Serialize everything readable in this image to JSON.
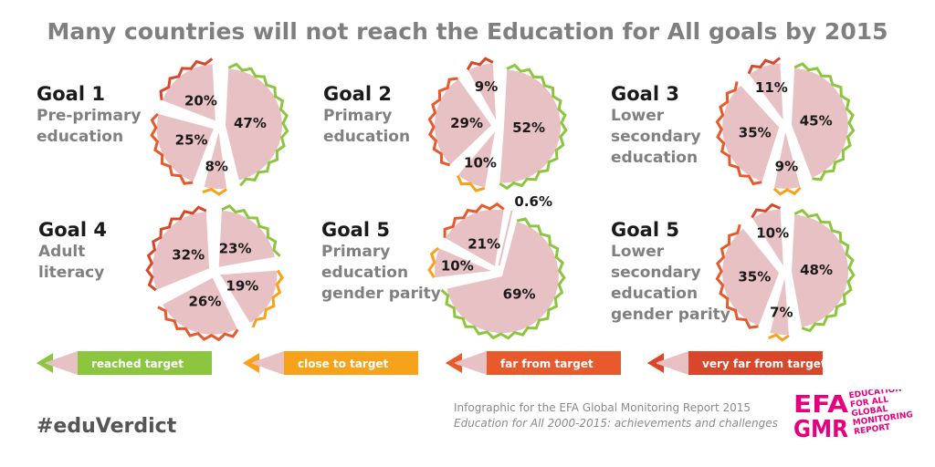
{
  "title": "Many countries will not reach the Education for All goals by 2015",
  "colors": {
    "reached": "#8cc63f",
    "close": "#f7a21b",
    "far": "#e8592b",
    "very_far": "#d9472b",
    "pie_fill": "#e8c1c5",
    "logo": "#e6007e"
  },
  "chart_data": [
    {
      "type": "pie",
      "goal": "Goal 1",
      "subtitle": "Pre-primary\neducation",
      "categories": [
        "reached target",
        "close to target",
        "far from target",
        "very far from target"
      ],
      "values": [
        47,
        8,
        25,
        20
      ],
      "labels": [
        "47%",
        "8%",
        "25%",
        "20%"
      ]
    },
    {
      "type": "pie",
      "goal": "Goal 2",
      "subtitle": "Primary\neducation",
      "categories": [
        "reached target",
        "close to target",
        "far from target",
        "very far from target"
      ],
      "values": [
        52,
        10,
        29,
        9
      ],
      "labels": [
        "52%",
        "10%",
        "29%",
        "9%"
      ]
    },
    {
      "type": "pie",
      "goal": "Goal 3",
      "subtitle": "Lower\nsecondary\neducation",
      "categories": [
        "reached target",
        "close to target",
        "far from target",
        "very far from target"
      ],
      "values": [
        45,
        9,
        35,
        11
      ],
      "labels": [
        "45%",
        "9%",
        "35%",
        "11%"
      ]
    },
    {
      "type": "pie",
      "goal": "Goal 4",
      "subtitle": "Adult\nliteracy",
      "categories": [
        "reached target",
        "close to target",
        "far from target",
        "very far from target"
      ],
      "values": [
        23,
        19,
        26,
        32
      ],
      "labels": [
        "23%",
        "19%",
        "26%",
        "32%"
      ]
    },
    {
      "type": "pie",
      "goal": "Goal 5",
      "subtitle": "Primary\neducation\ngender parity",
      "categories": [
        "reached target",
        "close to target",
        "far from target",
        "very far from target"
      ],
      "values": [
        69,
        10,
        21,
        0.6
      ],
      "labels": [
        "69%",
        "10%",
        "21%",
        "0.6%"
      ]
    },
    {
      "type": "pie",
      "goal": "Goal 5",
      "subtitle": "Lower\nsecondary\neducation\ngender parity",
      "categories": [
        "reached target",
        "close to target",
        "far from target",
        "very far from target"
      ],
      "values": [
        48,
        7,
        35,
        10
      ],
      "labels": [
        "48%",
        "7%",
        "35%",
        "10%"
      ]
    }
  ],
  "legend": [
    {
      "label": "reached target",
      "color_key": "reached"
    },
    {
      "label": "close to target",
      "color_key": "close"
    },
    {
      "label": "far from target",
      "color_key": "far"
    },
    {
      "label": "very far from target",
      "color_key": "very_far"
    }
  ],
  "hashtag": "#eduVerdict",
  "credit_line1": "Infographic for the EFA Global Monitoring Report 2015",
  "credit_line2": "Education for All 2000-2015: achievements and challenges",
  "logo": {
    "letters_top": "EFA",
    "letters_bottom": "GMR",
    "text": [
      "EDUCATION",
      "FOR ALL",
      "GLOBAL",
      "MONITORING",
      "REPORT"
    ]
  }
}
